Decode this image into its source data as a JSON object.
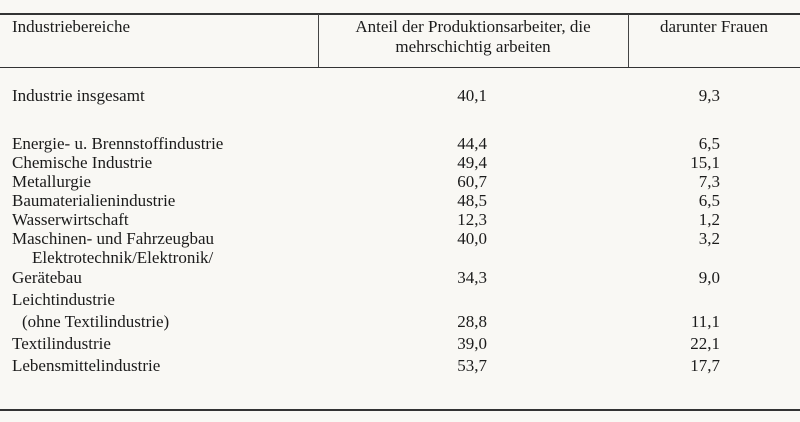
{
  "table": {
    "headers": [
      "Industriebereiche",
      "Anteil der Produktionsarbeiter, die",
      "mehrschichtig arbeiten",
      "darunter Frauen"
    ],
    "rows": [
      {
        "label": "Industrie insgesamt",
        "label2": "",
        "share": "40,1",
        "women": "9,3"
      },
      {
        "label": "Energie- u. Brennstoffindustrie",
        "label2": "",
        "share": "44,4",
        "women": "6,5"
      },
      {
        "label": "Chemische Industrie",
        "label2": "",
        "share": "49,4",
        "women": "15,1"
      },
      {
        "label": "Metallurgie",
        "label2": "",
        "share": "60,7",
        "women": "7,3"
      },
      {
        "label": "Baumaterialienindustrie",
        "label2": "",
        "share": "48,5",
        "women": "6,5"
      },
      {
        "label": "Wasserwirtschaft",
        "label2": "",
        "share": "12,3",
        "women": "1,2"
      },
      {
        "label": "Maschinen- und Fahrzeugbau",
        "label2": "",
        "share": "40,0",
        "women": "3,2"
      },
      {
        "label": "Elektrotechnik/Elektronik/",
        "label2": "Gerätebau",
        "share": "34,3",
        "women": "9,0"
      },
      {
        "label": "Leichtindustrie",
        "label2": "(ohne Textilindustrie)",
        "share": "28,8",
        "women": "11,1"
      },
      {
        "label": "Textilindustrie",
        "label2": "",
        "share": "39,0",
        "women": "22,1"
      },
      {
        "label": "Lebensmittelindustrie",
        "label2": "",
        "share": "53,7",
        "women": "17,7"
      }
    ]
  }
}
